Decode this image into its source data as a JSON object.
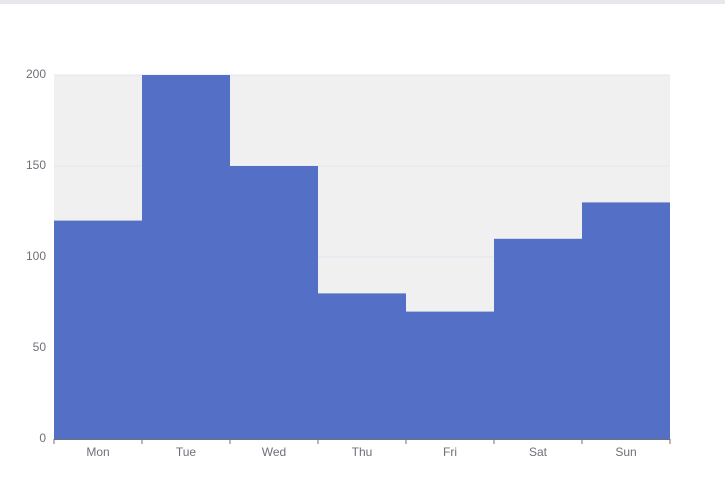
{
  "chart_data": {
    "type": "bar",
    "categories": [
      "Mon",
      "Tue",
      "Wed",
      "Thu",
      "Fri",
      "Sat",
      "Sun"
    ],
    "values": [
      120,
      200,
      150,
      80,
      70,
      110,
      130
    ],
    "color": "#5470c6",
    "ylim": [
      0,
      200
    ],
    "yticks": [
      0,
      50,
      100,
      150,
      200
    ],
    "grid": true
  }
}
